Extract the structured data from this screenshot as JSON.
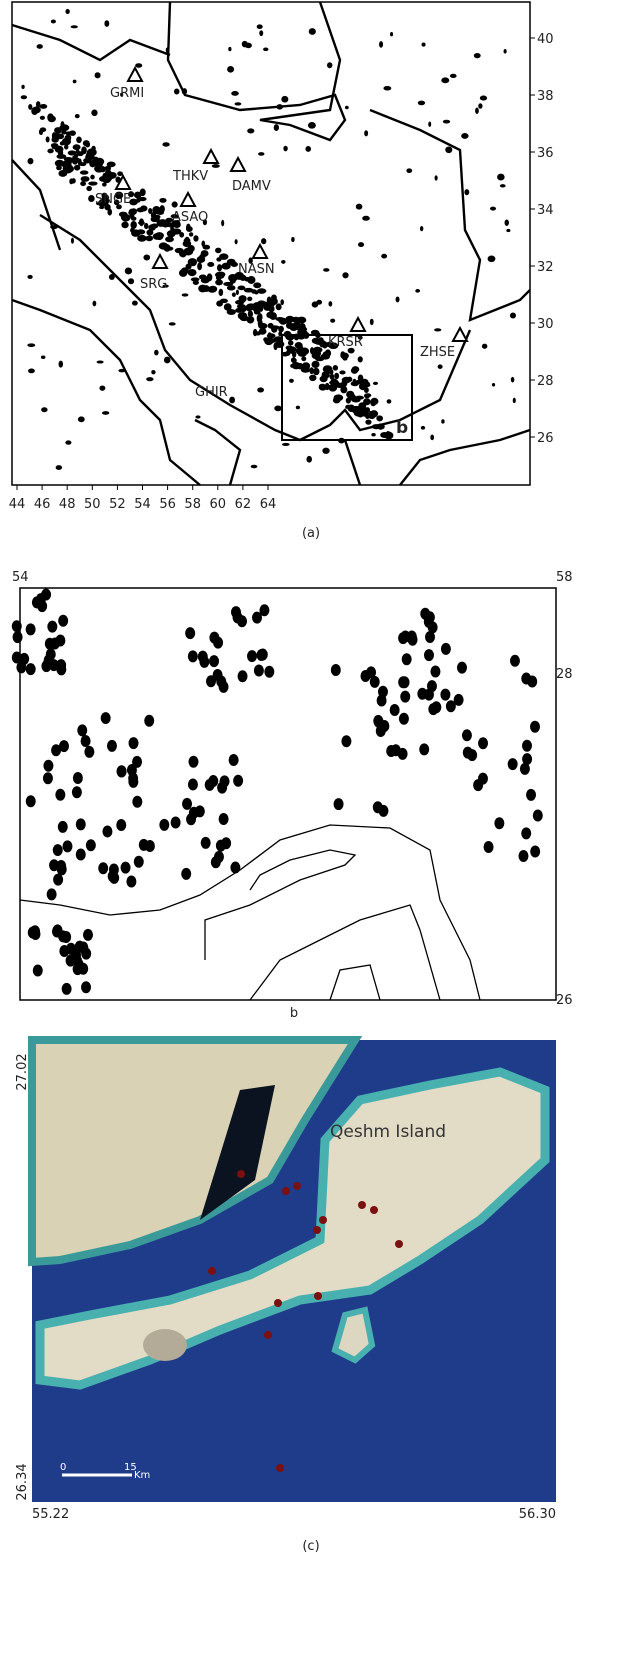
{
  "panel_a": {
    "caption": "(a)",
    "x_ticks": [
      44,
      46,
      48,
      50,
      52,
      54,
      56,
      58,
      60,
      62,
      64
    ],
    "y_ticks": [
      40,
      38,
      36,
      34,
      32,
      30,
      28,
      26
    ],
    "stations": [
      "GRMI",
      "THKV",
      "DAMV",
      "SNGE",
      "ASAO",
      "NASN",
      "SRG",
      "KRSR",
      "ZHSE",
      "GHIR"
    ],
    "inset_label": "b"
  },
  "panel_b": {
    "caption": "b",
    "top_left": 54,
    "top_right": 58,
    "right_upper": 28,
    "bottom_right": 26
  },
  "panel_c": {
    "caption": "(c)",
    "island_label": "Qeshm Island",
    "lat_top": "27.02",
    "lat_bottom": "26.34",
    "lon_left": "55.22",
    "lon_right": "56.30",
    "scale_start": "0",
    "scale_end": "15",
    "scale_unit": "Km"
  }
}
